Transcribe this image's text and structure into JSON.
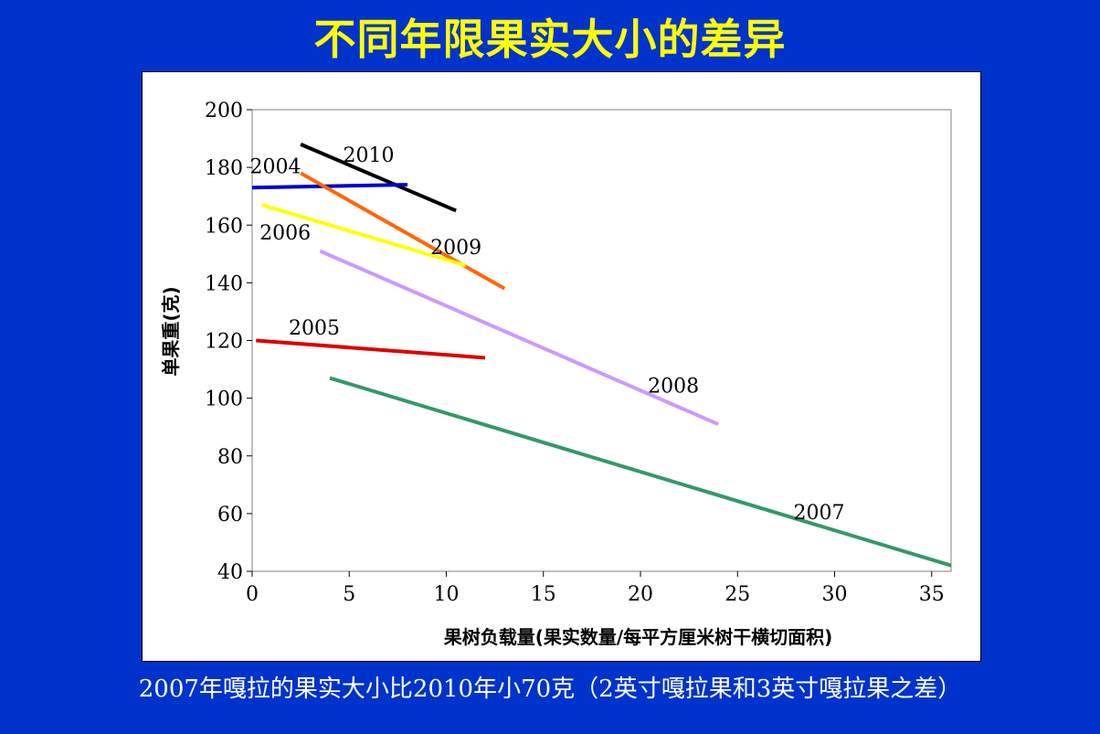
{
  "title": "不同年限果实大小的差异",
  "caption": "2007年嘎拉的果实大小比2010年小70克（2英寸嘎拉果和3英寸嘎拉果之差）",
  "chart_data": {
    "type": "line",
    "xlabel": "果树负载量(果实数量/每平方厘米树干横切面积)",
    "ylabel": "单果重(克)",
    "xlim": [
      0,
      36
    ],
    "ylim": [
      40,
      200
    ],
    "xticks": [
      0,
      5,
      10,
      15,
      20,
      25,
      30,
      35
    ],
    "yticks": [
      40,
      60,
      80,
      100,
      120,
      140,
      160,
      180,
      200
    ],
    "grid": false,
    "legend": "inline labels",
    "series": [
      {
        "name": "2010",
        "color": "#000000",
        "x": [
          2.5,
          10.5
        ],
        "y": [
          188,
          165
        ],
        "label_at": [
          6.0,
          182
        ]
      },
      {
        "name": "2004",
        "color": "#0000cc",
        "x": [
          0,
          8
        ],
        "y": [
          173,
          174
        ],
        "label_at": [
          1.2,
          178
        ]
      },
      {
        "name": "2009",
        "color": "#ff6600",
        "x": [
          2.5,
          13
        ],
        "y": [
          178,
          138
        ],
        "label_at": [
          10.5,
          150
        ]
      },
      {
        "name": "2006",
        "color": "#ffff00",
        "x": [
          0.5,
          11
        ],
        "y": [
          167,
          146
        ],
        "label_at": [
          1.7,
          155
        ]
      },
      {
        "name": "2008",
        "color": "#cc99ff",
        "x": [
          3.5,
          24
        ],
        "y": [
          151,
          91
        ],
        "label_at": [
          21.7,
          102
        ]
      },
      {
        "name": "2005",
        "color": "#dd0000",
        "x": [
          0.2,
          12
        ],
        "y": [
          120,
          114
        ],
        "label_at": [
          3.2,
          122
        ]
      },
      {
        "name": "2007",
        "color": "#339966",
        "x": [
          4,
          36
        ],
        "y": [
          107,
          42
        ],
        "label_at": [
          29.2,
          58
        ]
      }
    ]
  }
}
